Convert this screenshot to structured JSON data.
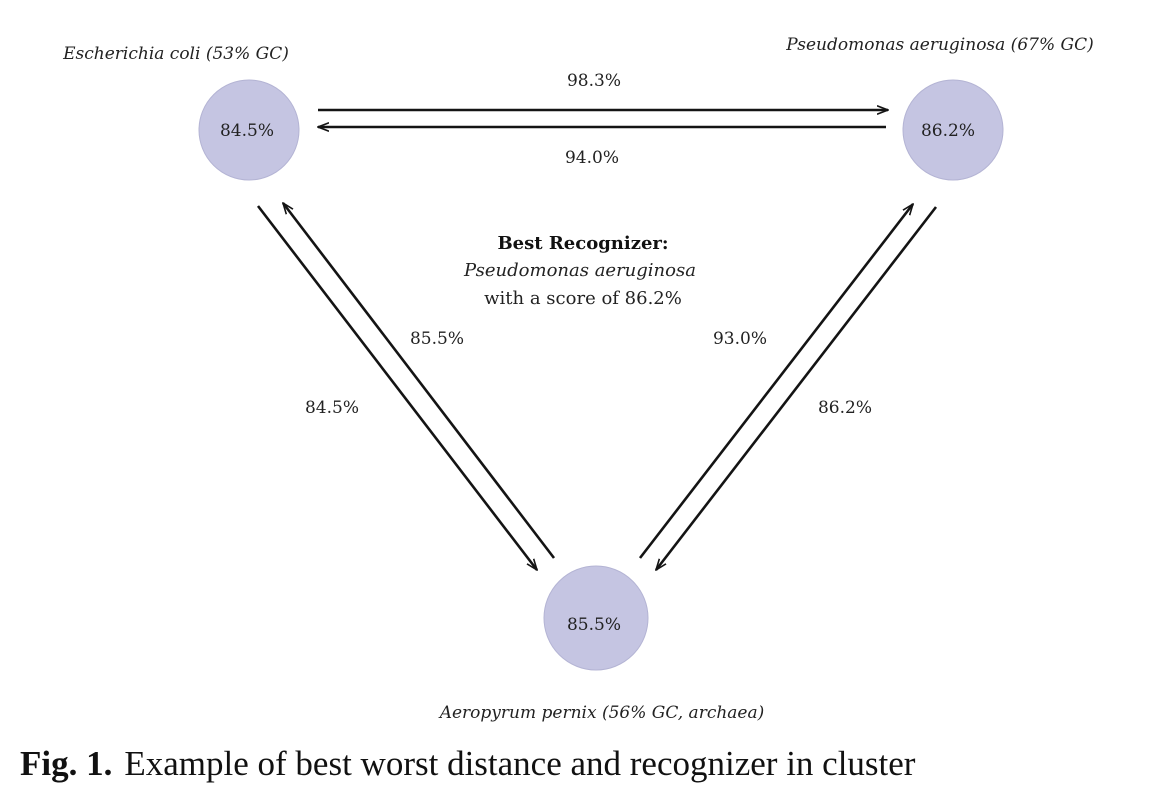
{
  "nodes": {
    "ecoli": {
      "name": "Escherichia coli (53% GC)",
      "value": "84.5%",
      "color": "#c5c5e2"
    },
    "paeruginosa": {
      "name": "Pseudomonas aeruginosa (67% GC)",
      "value": "86.2%",
      "color": "#c5c5e2"
    },
    "apernix": {
      "name": "Aeropyrum pernix (56% GC, archaea)",
      "value": "85.5%",
      "color": "#c5c5e2"
    }
  },
  "edges": {
    "ecoli_to_paeruginosa": "98.3%",
    "paeruginosa_to_ecoli": "94.0%",
    "apernix_to_ecoli": "85.5%",
    "ecoli_to_apernix": "84.5%",
    "apernix_to_paeruginosa": "93.0%",
    "paeruginosa_to_apernix": "86.2%"
  },
  "best_recognizer": {
    "title": "Best Recognizer:",
    "name": "Pseudomonas aeruginosa",
    "score_text": "with a score of 86.2%"
  },
  "caption": {
    "label": "Fig. 1.",
    "text": "Example of best worst distance and recognizer in cluster"
  }
}
